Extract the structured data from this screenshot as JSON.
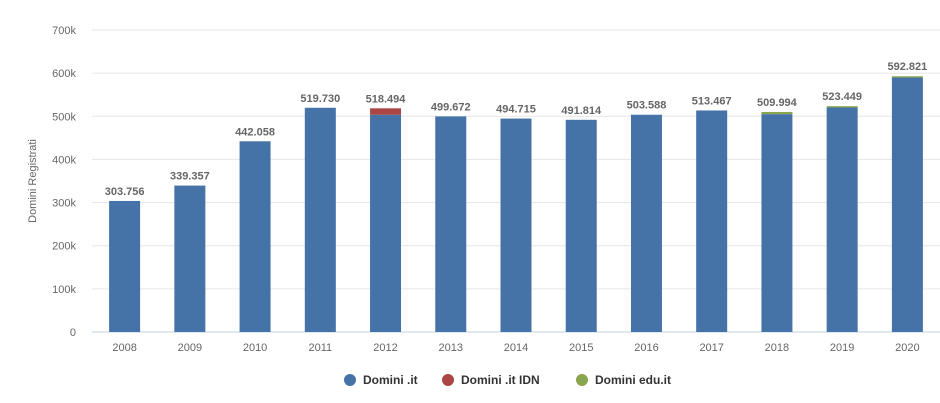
{
  "chart_data": {
    "type": "bar",
    "stacked": true,
    "categories": [
      "2008",
      "2009",
      "2010",
      "2011",
      "2012",
      "2013",
      "2014",
      "2015",
      "2016",
      "2017",
      "2018",
      "2019",
      "2020"
    ],
    "series": [
      {
        "name": "Domini .it",
        "color": "#4572a7",
        "values": [
          303756,
          339357,
          442058,
          519730,
          503494,
          499672,
          494715,
          491814,
          503588,
          513467,
          504994,
          520449,
          589821
        ]
      },
      {
        "name": "Domini .it IDN",
        "color": "#aa4643",
        "values": [
          0,
          0,
          0,
          0,
          15000,
          0,
          0,
          0,
          0,
          0,
          0,
          0,
          0
        ]
      },
      {
        "name": "Domini edu.it",
        "color": "#89a54e",
        "values": [
          0,
          0,
          0,
          0,
          0,
          0,
          0,
          0,
          0,
          0,
          5000,
          3000,
          3000
        ]
      }
    ],
    "data_labels": [
      "303.756",
      "339.357",
      "442.058",
      "519.730",
      "518.494",
      "499.672",
      "494.715",
      "491.814",
      "503.588",
      "513.467",
      "509.994",
      "523.449",
      "592.821"
    ],
    "ylabel": "Domini Registrati",
    "ylim": [
      0,
      700000
    ],
    "yticks": [
      0,
      100000,
      200000,
      300000,
      400000,
      500000,
      600000,
      700000
    ],
    "ytick_labels": [
      "0",
      "100k",
      "200k",
      "300k",
      "400k",
      "500k",
      "600k",
      "700k"
    ],
    "grid": true,
    "legend_position": "bottom"
  }
}
